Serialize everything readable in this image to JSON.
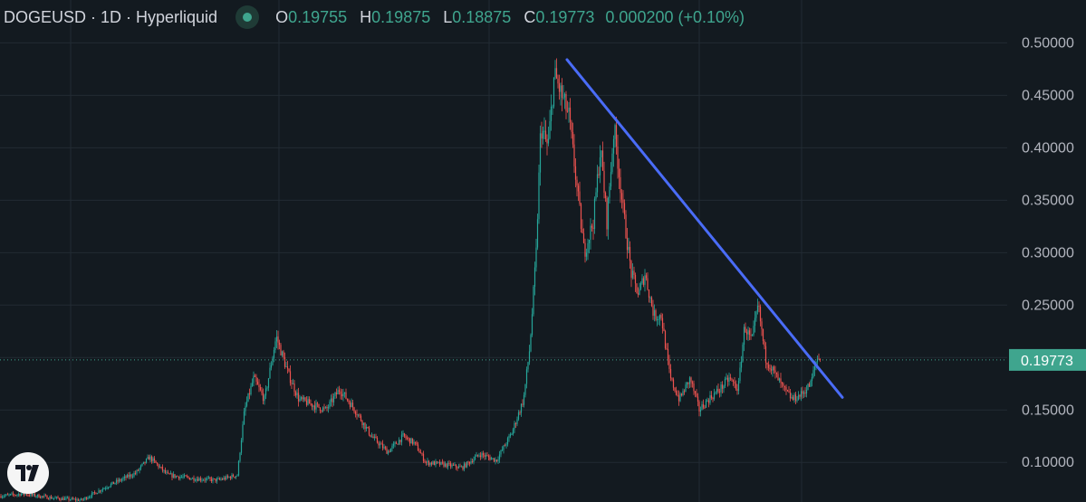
{
  "header": {
    "symbol": "DOGEUSD · 1D · Hyperliquid",
    "open_label": "O",
    "open_value": "0.19755",
    "high_label": "H",
    "high_value": "0.19875",
    "low_label": "L",
    "low_value": "0.18875",
    "close_label": "C",
    "close_value": "0.19773",
    "change": "0.000200 (+0.10%)"
  },
  "colors": {
    "background": "#131a20",
    "grid": "#222b33",
    "up": "#26a69a",
    "down": "#ef5350",
    "trendline": "#4a6cf7",
    "price_tag": "#3fa58e",
    "axis_text": "#b2b5be"
  },
  "chart_data": {
    "type": "candlestick",
    "symbol": "DOGEUSD",
    "interval": "1D",
    "exchange": "Hyperliquid",
    "y_axis_ticks": [
      "0.50000",
      "0.45000",
      "0.40000",
      "0.35000",
      "0.30000",
      "0.25000",
      "0.15000",
      "0.10000"
    ],
    "ylim": [
      0.065,
      0.525
    ],
    "last_price": 0.19773,
    "last_price_label": "0.19773",
    "grid": true,
    "price_path_approx": [
      [
        0,
        0.068
      ],
      [
        25,
        0.07
      ],
      [
        60,
        0.066
      ],
      [
        90,
        0.064
      ],
      [
        120,
        0.078
      ],
      [
        150,
        0.09
      ],
      [
        165,
        0.105
      ],
      [
        185,
        0.088
      ],
      [
        210,
        0.085
      ],
      [
        240,
        0.083
      ],
      [
        262,
        0.088
      ],
      [
        270,
        0.15
      ],
      [
        280,
        0.18
      ],
      [
        292,
        0.16
      ],
      [
        305,
        0.22
      ],
      [
        318,
        0.185
      ],
      [
        330,
        0.16
      ],
      [
        345,
        0.155
      ],
      [
        360,
        0.15
      ],
      [
        375,
        0.17
      ],
      [
        392,
        0.15
      ],
      [
        410,
        0.125
      ],
      [
        428,
        0.11
      ],
      [
        445,
        0.125
      ],
      [
        458,
        0.118
      ],
      [
        470,
        0.1
      ],
      [
        490,
        0.098
      ],
      [
        510,
        0.095
      ],
      [
        530,
        0.108
      ],
      [
        548,
        0.102
      ],
      [
        565,
        0.128
      ],
      [
        578,
        0.16
      ],
      [
        585,
        0.21
      ],
      [
        592,
        0.3
      ],
      [
        597,
        0.42
      ],
      [
        605,
        0.4
      ],
      [
        612,
        0.47
      ],
      [
        620,
        0.45
      ],
      [
        628,
        0.43
      ],
      [
        636,
        0.37
      ],
      [
        645,
        0.3
      ],
      [
        655,
        0.33
      ],
      [
        663,
        0.4
      ],
      [
        670,
        0.33
      ],
      [
        678,
        0.42
      ],
      [
        688,
        0.34
      ],
      [
        697,
        0.28
      ],
      [
        705,
        0.26
      ],
      [
        712,
        0.28
      ],
      [
        722,
        0.24
      ],
      [
        730,
        0.24
      ],
      [
        740,
        0.18
      ],
      [
        750,
        0.16
      ],
      [
        762,
        0.18
      ],
      [
        772,
        0.15
      ],
      [
        782,
        0.16
      ],
      [
        795,
        0.17
      ],
      [
        805,
        0.18
      ],
      [
        815,
        0.17
      ],
      [
        822,
        0.23
      ],
      [
        830,
        0.215
      ],
      [
        837,
        0.25
      ],
      [
        845,
        0.2
      ],
      [
        855,
        0.185
      ],
      [
        865,
        0.17
      ],
      [
        875,
        0.16
      ],
      [
        885,
        0.165
      ],
      [
        895,
        0.175
      ],
      [
        902,
        0.2
      ],
      [
        906,
        0.198
      ]
    ],
    "trendline": [
      [
        626,
        0.484
      ],
      [
        930,
        0.162
      ]
    ]
  }
}
